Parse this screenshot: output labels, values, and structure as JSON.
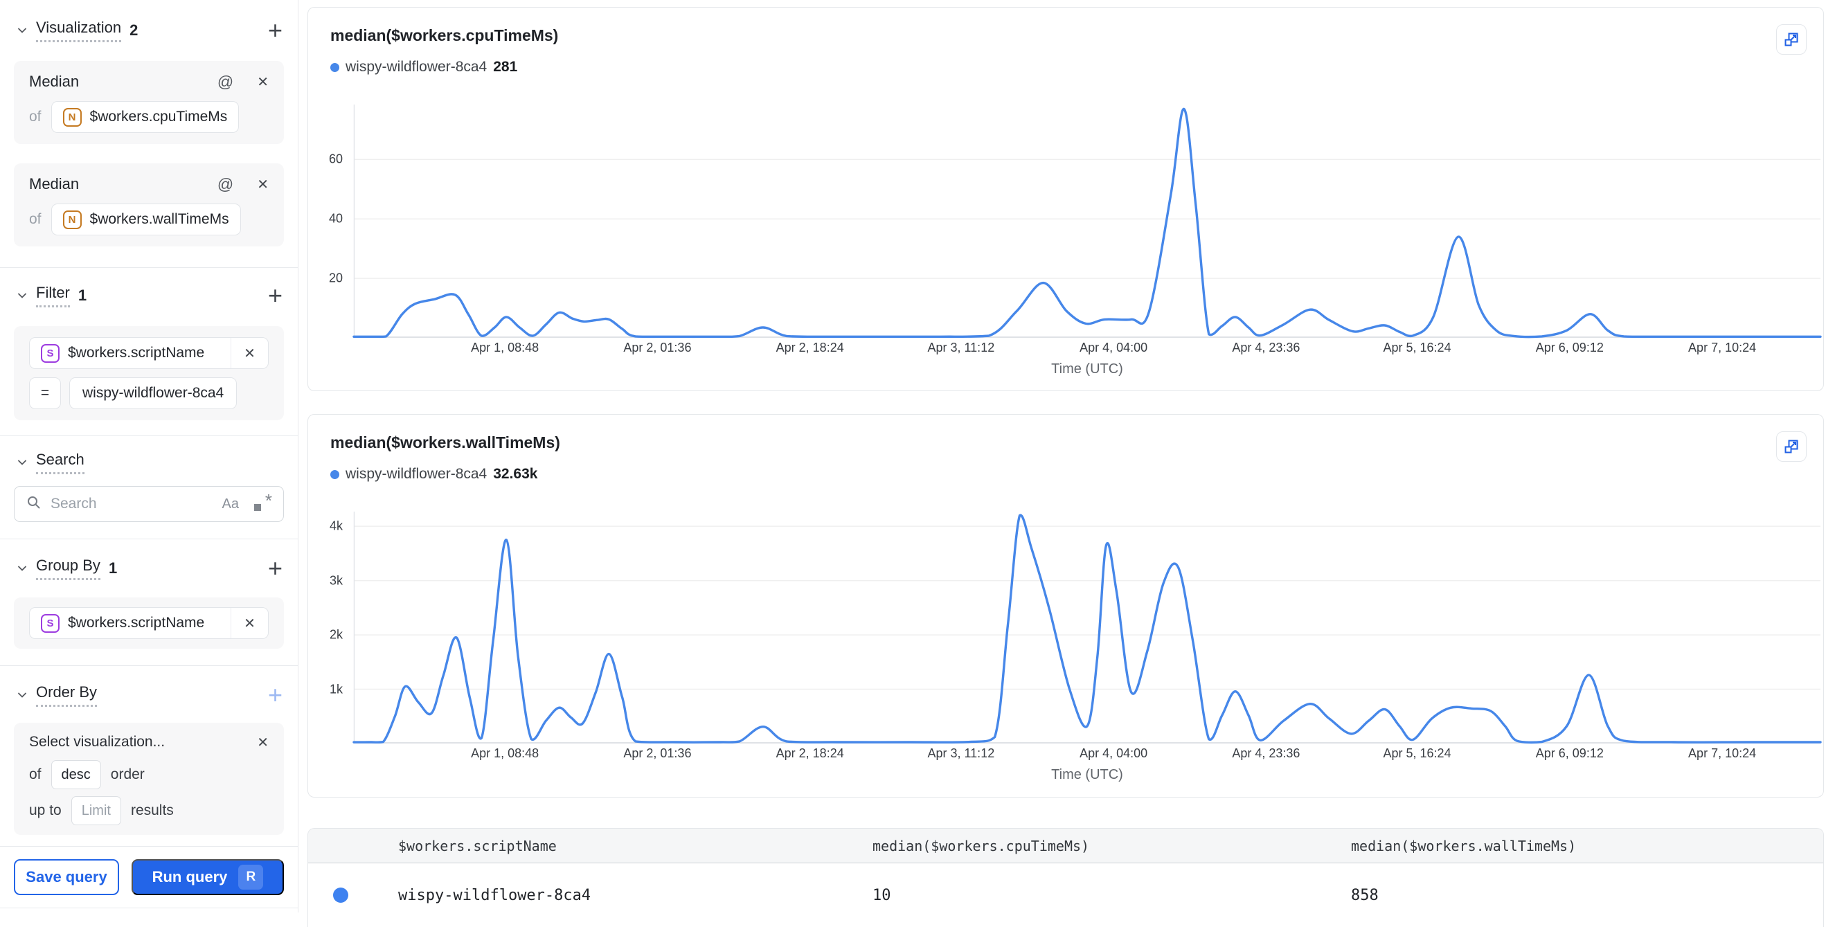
{
  "accent": {
    "blue": "#2365e8",
    "line_blue": "#4687e9",
    "dot_blue": "#3e82f0"
  },
  "sidebar": {
    "visualization": {
      "label": "Visualization",
      "count": "2",
      "cards": [
        {
          "fn": "Median",
          "of_word": "of",
          "type_icon": "N",
          "field": "$workers.cpuTimeMs"
        },
        {
          "fn": "Median",
          "of_word": "of",
          "type_icon": "N",
          "field": "$workers.wallTimeMs"
        }
      ]
    },
    "filter": {
      "label": "Filter",
      "count": "1",
      "type_icon": "S",
      "field": "$workers.scriptName",
      "operator": "=",
      "value": "wispy-wildflower-8ca4"
    },
    "search": {
      "label": "Search",
      "placeholder": "Search",
      "case_icon": "Aa",
      "regex_icon": ".*"
    },
    "group_by": {
      "label": "Group By",
      "count": "1",
      "type_icon": "S",
      "field": "$workers.scriptName"
    },
    "order_by": {
      "label": "Order By",
      "select_placeholder": "Select visualization...",
      "of_word": "of",
      "direction": "desc",
      "order_word": "order",
      "up_to_word": "up to",
      "limit_placeholder": "Limit",
      "results_word": "results"
    },
    "save_button": "Save query",
    "run_button": "Run query",
    "run_shortcut": "R"
  },
  "chart_data": [
    {
      "type": "line",
      "title": "median($workers.cpuTimeMs)",
      "series_name": "wispy-wildflower-8ca4",
      "latest_value": "281",
      "xlabel": "Time (UTC)",
      "line_color": "#4687e9",
      "ymax": 78.5,
      "yticks": [
        {
          "v": 20,
          "t": "20"
        },
        {
          "v": 40,
          "t": "40"
        },
        {
          "v": 60,
          "t": "60"
        }
      ],
      "xticks": [
        {
          "f": 0.103,
          "t": "Apr 1, 08:48"
        },
        {
          "f": 0.207,
          "t": "Apr 2, 01:36"
        },
        {
          "f": 0.311,
          "t": "Apr 2, 18:24"
        },
        {
          "f": 0.414,
          "t": "Apr 3, 11:12"
        },
        {
          "f": 0.518,
          "t": "Apr 4, 04:00"
        },
        {
          "f": 0.622,
          "t": "Apr 4, 23:36"
        },
        {
          "f": 0.725,
          "t": "Apr 5, 16:24"
        },
        {
          "f": 0.829,
          "t": "Apr 6, 09:12"
        },
        {
          "f": 0.933,
          "t": "Apr 7, 10:24"
        }
      ],
      "points": [
        [
          0,
          0.4
        ],
        [
          0.012,
          0.4
        ],
        [
          0.022,
          0.5
        ],
        [
          0.033,
          8
        ],
        [
          0.042,
          11.5
        ],
        [
          0.055,
          13
        ],
        [
          0.069,
          14.5
        ],
        [
          0.078,
          8
        ],
        [
          0.087,
          0.7
        ],
        [
          0.096,
          3.5
        ],
        [
          0.104,
          7
        ],
        [
          0.113,
          3.5
        ],
        [
          0.122,
          0.7
        ],
        [
          0.131,
          4.5
        ],
        [
          0.14,
          8.5
        ],
        [
          0.149,
          6.5
        ],
        [
          0.157,
          5.5
        ],
        [
          0.166,
          6
        ],
        [
          0.174,
          6.2
        ],
        [
          0.183,
          3
        ],
        [
          0.192,
          0.5
        ],
        [
          0.22,
          0.4
        ],
        [
          0.25,
          0.4
        ],
        [
          0.263,
          0.6
        ],
        [
          0.279,
          3.5
        ],
        [
          0.295,
          0.6
        ],
        [
          0.32,
          0.4
        ],
        [
          0.36,
          0.4
        ],
        [
          0.4,
          0.4
        ],
        [
          0.433,
          0.7
        ],
        [
          0.452,
          9
        ],
        [
          0.47,
          18.5
        ],
        [
          0.486,
          9
        ],
        [
          0.499,
          4.8
        ],
        [
          0.512,
          6.2
        ],
        [
          0.53,
          6.2
        ],
        [
          0.542,
          8.5
        ],
        [
          0.557,
          48
        ],
        [
          0.566,
          77
        ],
        [
          0.574,
          45
        ],
        [
          0.583,
          1.2
        ],
        [
          0.592,
          4
        ],
        [
          0.601,
          7
        ],
        [
          0.61,
          3.5
        ],
        [
          0.618,
          0.8
        ],
        [
          0.634,
          4.5
        ],
        [
          0.652,
          9.5
        ],
        [
          0.665,
          6
        ],
        [
          0.681,
          2.2
        ],
        [
          0.692,
          3.2
        ],
        [
          0.703,
          4.2
        ],
        [
          0.713,
          2
        ],
        [
          0.722,
          0.7
        ],
        [
          0.736,
          7
        ],
        [
          0.753,
          34
        ],
        [
          0.767,
          11
        ],
        [
          0.779,
          2.5
        ],
        [
          0.791,
          0.6
        ],
        [
          0.81,
          0.5
        ],
        [
          0.827,
          2.5
        ],
        [
          0.843,
          8
        ],
        [
          0.855,
          2.5
        ],
        [
          0.866,
          0.5
        ],
        [
          0.9,
          0.4
        ],
        [
          0.95,
          0.4
        ],
        [
          1,
          0.4
        ]
      ]
    },
    {
      "type": "line",
      "title": "median($workers.wallTimeMs)",
      "series_name": "wispy-wildflower-8ca4",
      "latest_value": "32.63k",
      "xlabel": "Time (UTC)",
      "line_color": "#4687e9",
      "ymax": 4270,
      "yticks": [
        {
          "v": 1000,
          "t": "1k"
        },
        {
          "v": 2000,
          "t": "2k"
        },
        {
          "v": 3000,
          "t": "3k"
        },
        {
          "v": 4000,
          "t": "4k"
        }
      ],
      "xticks": [
        {
          "f": 0.103,
          "t": "Apr 1, 08:48"
        },
        {
          "f": 0.207,
          "t": "Apr 2, 01:36"
        },
        {
          "f": 0.311,
          "t": "Apr 2, 18:24"
        },
        {
          "f": 0.414,
          "t": "Apr 3, 11:12"
        },
        {
          "f": 0.518,
          "t": "Apr 4, 04:00"
        },
        {
          "f": 0.622,
          "t": "Apr 4, 23:36"
        },
        {
          "f": 0.725,
          "t": "Apr 5, 16:24"
        },
        {
          "f": 0.829,
          "t": "Apr 6, 09:12"
        },
        {
          "f": 0.933,
          "t": "Apr 7, 10:24"
        }
      ],
      "points": [
        [
          0,
          25
        ],
        [
          0.012,
          25
        ],
        [
          0.02,
          30
        ],
        [
          0.028,
          500
        ],
        [
          0.035,
          1050
        ],
        [
          0.044,
          760
        ],
        [
          0.053,
          560
        ],
        [
          0.061,
          1250
        ],
        [
          0.07,
          1950
        ],
        [
          0.079,
          850
        ],
        [
          0.087,
          100
        ],
        [
          0.095,
          1900
        ],
        [
          0.104,
          3750
        ],
        [
          0.112,
          1600
        ],
        [
          0.121,
          80
        ],
        [
          0.131,
          420
        ],
        [
          0.14,
          660
        ],
        [
          0.148,
          480
        ],
        [
          0.156,
          370
        ],
        [
          0.165,
          950
        ],
        [
          0.174,
          1650
        ],
        [
          0.183,
          850
        ],
        [
          0.192,
          40
        ],
        [
          0.22,
          25
        ],
        [
          0.25,
          25
        ],
        [
          0.263,
          40
        ],
        [
          0.279,
          310
        ],
        [
          0.295,
          40
        ],
        [
          0.33,
          25
        ],
        [
          0.38,
          25
        ],
        [
          0.42,
          30
        ],
        [
          0.437,
          120
        ],
        [
          0.446,
          2200
        ],
        [
          0.454,
          4200
        ],
        [
          0.462,
          3600
        ],
        [
          0.474,
          2500
        ],
        [
          0.488,
          1000
        ],
        [
          0.5,
          320
        ],
        [
          0.507,
          1600
        ],
        [
          0.513,
          3650
        ],
        [
          0.52,
          2800
        ],
        [
          0.53,
          950
        ],
        [
          0.541,
          1700
        ],
        [
          0.552,
          2950
        ],
        [
          0.562,
          3250
        ],
        [
          0.572,
          1900
        ],
        [
          0.583,
          80
        ],
        [
          0.592,
          520
        ],
        [
          0.601,
          960
        ],
        [
          0.61,
          520
        ],
        [
          0.618,
          60
        ],
        [
          0.634,
          420
        ],
        [
          0.652,
          730
        ],
        [
          0.665,
          460
        ],
        [
          0.68,
          180
        ],
        [
          0.692,
          420
        ],
        [
          0.703,
          630
        ],
        [
          0.713,
          320
        ],
        [
          0.722,
          70
        ],
        [
          0.735,
          460
        ],
        [
          0.748,
          660
        ],
        [
          0.762,
          645
        ],
        [
          0.775,
          600
        ],
        [
          0.785,
          320
        ],
        [
          0.793,
          50
        ],
        [
          0.81,
          30
        ],
        [
          0.827,
          320
        ],
        [
          0.842,
          1260
        ],
        [
          0.855,
          320
        ],
        [
          0.866,
          50
        ],
        [
          0.9,
          25
        ],
        [
          0.95,
          25
        ],
        [
          1,
          25
        ]
      ]
    }
  ],
  "table": {
    "headers": [
      "$workers.scriptName",
      "median($workers.cpuTimeMs)",
      "median($workers.wallTimeMs)"
    ],
    "rows": [
      {
        "script": "wispy-wildflower-8ca4",
        "cpu": "10",
        "wall": "858"
      }
    ]
  }
}
